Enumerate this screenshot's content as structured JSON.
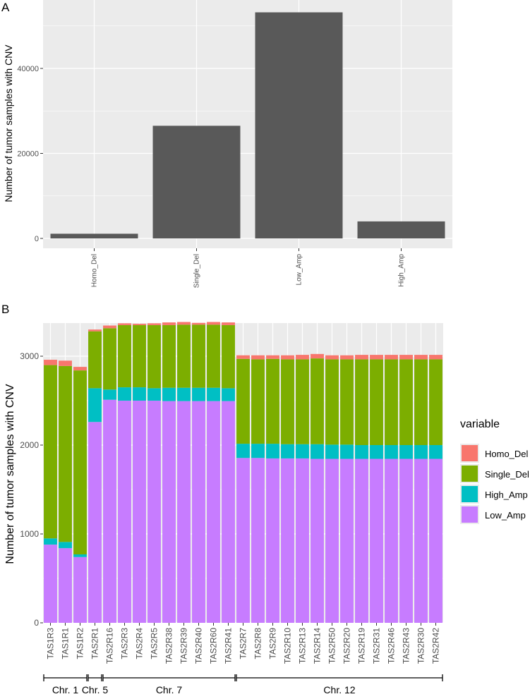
{
  "colors": {
    "panel_bg": "#ebebeb",
    "grid": "#ffffff",
    "bar_a": "#595959",
    "homo_del": "#f8766d",
    "single_del": "#7cae00",
    "high_amp": "#00bfc4",
    "low_amp": "#c77cff"
  },
  "chart_data": [
    {
      "panel_label": "A",
      "type": "bar",
      "categories": [
        "Homo_Del",
        "Single_Del",
        "Low_Amp",
        "High_Amp"
      ],
      "values": [
        1100,
        26500,
        53200,
        4000
      ],
      "ylabel": "Number of tumor samples with CNV",
      "xlabel": "",
      "ylim": [
        0,
        55000
      ],
      "yticks": [
        0,
        20000,
        40000
      ],
      "ytick_labels": [
        "0",
        "20000",
        "40000"
      ],
      "grid": true
    },
    {
      "panel_label": "B",
      "type": "bar",
      "stacked": true,
      "categories": [
        "TAS1R3",
        "TAS1R1",
        "TAS1R2",
        "TAS2R1",
        "TAS2R16",
        "TAS2R3",
        "TAS2R4",
        "TAS2R5",
        "TAS2R38",
        "TAS2R39",
        "TAS2R40",
        "TAS2R60",
        "TAS2R41",
        "TAS2R7",
        "TAS2R8",
        "TAS2R9",
        "TAS2R10",
        "TAS2R13",
        "TAS2R14",
        "TAS2R50",
        "TAS2R20",
        "TAS2R19",
        "TAS2R31",
        "TAS2R46",
        "TAS2R43",
        "TAS2R30",
        "TAS2R42"
      ],
      "series": [
        {
          "name": "Low_Amp",
          "values": [
            880,
            840,
            740,
            2260,
            2510,
            2500,
            2500,
            2500,
            2495,
            2495,
            2495,
            2495,
            2495,
            1855,
            1855,
            1850,
            1850,
            1850,
            1845,
            1845,
            1845,
            1845,
            1845,
            1845,
            1845,
            1845,
            1845
          ]
        },
        {
          "name": "High_Amp",
          "values": [
            70,
            70,
            30,
            380,
            115,
            150,
            150,
            140,
            150,
            150,
            150,
            150,
            145,
            160,
            160,
            165,
            160,
            160,
            165,
            160,
            160,
            155,
            155,
            155,
            155,
            155,
            155
          ]
        },
        {
          "name": "Single_Del",
          "values": [
            1950,
            1980,
            2070,
            640,
            690,
            700,
            700,
            710,
            705,
            710,
            710,
            710,
            710,
            955,
            950,
            955,
            955,
            955,
            965,
            960,
            960,
            965,
            965,
            965,
            965,
            965,
            965
          ]
        },
        {
          "name": "Homo_Del",
          "values": [
            60,
            60,
            40,
            20,
            30,
            20,
            15,
            20,
            30,
            30,
            20,
            30,
            30,
            40,
            45,
            40,
            45,
            50,
            50,
            45,
            45,
            50,
            50,
            50,
            50,
            50,
            50
          ]
        }
      ],
      "legend_title": "variable",
      "legend_order": [
        "Homo_Del",
        "Single_Del",
        "High_Amp",
        "Low_Amp"
      ],
      "legend_position": "right",
      "ylabel": "Number of tumor samples with CNV",
      "xlabel": "",
      "ylim": [
        0,
        3400
      ],
      "yticks": [
        0,
        1000,
        2000,
        3000
      ],
      "ytick_labels": [
        "0",
        "1000",
        "2000",
        "3000"
      ],
      "grid": true,
      "groups": [
        {
          "label": "Chr. 1",
          "start": 0,
          "end": 2
        },
        {
          "label": "Chr. 5",
          "start": 3,
          "end": 3
        },
        {
          "label": "Chr. 7",
          "start": 4,
          "end": 12
        },
        {
          "label": "Chr. 12",
          "start": 13,
          "end": 26
        }
      ]
    }
  ]
}
